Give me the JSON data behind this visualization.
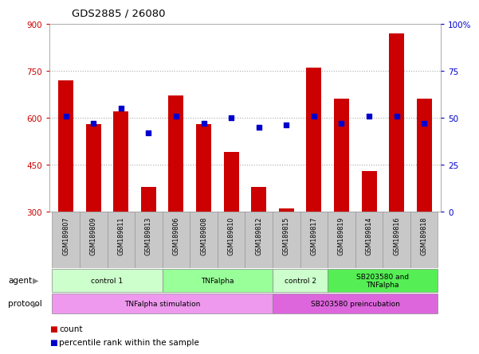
{
  "title": "GDS2885 / 26080",
  "samples": [
    "GSM189807",
    "GSM189809",
    "GSM189811",
    "GSM189813",
    "GSM189806",
    "GSM189808",
    "GSM189810",
    "GSM189812",
    "GSM189815",
    "GSM189817",
    "GSM189819",
    "GSM189814",
    "GSM189816",
    "GSM189818"
  ],
  "counts": [
    720,
    580,
    620,
    380,
    670,
    580,
    490,
    380,
    310,
    760,
    660,
    430,
    870,
    660
  ],
  "percentiles": [
    51,
    47,
    55,
    42,
    51,
    47,
    50,
    45,
    46,
    51,
    47,
    51,
    51,
    47
  ],
  "ylim_left": [
    300,
    900
  ],
  "ylim_right": [
    0,
    100
  ],
  "yticks_left": [
    300,
    450,
    600,
    750,
    900
  ],
  "yticks_right": [
    0,
    25,
    50,
    75,
    100
  ],
  "agent_groups": [
    {
      "label": "control 1",
      "start": 0,
      "end": 4,
      "color": "#ccffcc"
    },
    {
      "label": "TNFalpha",
      "start": 4,
      "end": 8,
      "color": "#99ff99"
    },
    {
      "label": "control 2",
      "start": 8,
      "end": 10,
      "color": "#ccffcc"
    },
    {
      "label": "SB203580 and\nTNFalpha",
      "start": 10,
      "end": 14,
      "color": "#55ee55"
    }
  ],
  "protocol_groups": [
    {
      "label": "TNFalpha stimulation",
      "start": 0,
      "end": 8,
      "color": "#ee99ee"
    },
    {
      "label": "SB203580 preincubation",
      "start": 8,
      "end": 14,
      "color": "#dd66dd"
    }
  ],
  "bar_color": "#cc0000",
  "dot_color": "#0000cc",
  "grid_color": "#aaaaaa",
  "tick_color_left": "#cc0000",
  "tick_color_right": "#0000cc",
  "plot_bg": "#ffffff",
  "sample_bg": "#c8c8c8",
  "sample_border": "#999999"
}
